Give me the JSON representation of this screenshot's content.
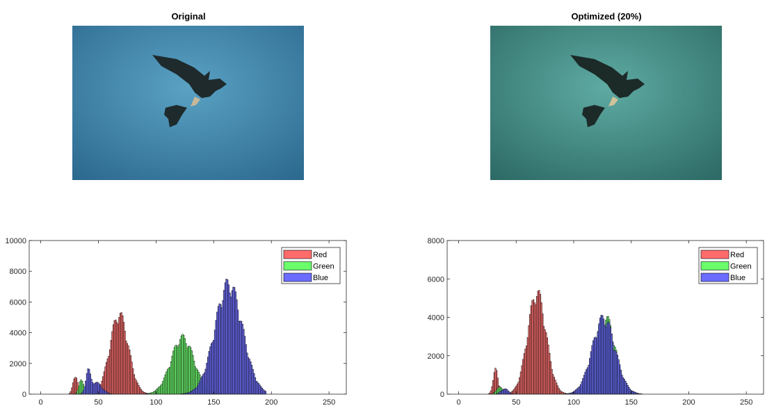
{
  "images": [
    {
      "title": "Original",
      "bg_light": "#5aa2c4",
      "bg_dark": "#2d6a8f"
    },
    {
      "title": "Optimized (20%)",
      "bg_light": "#5eaba3",
      "bg_dark": "#2e6b66"
    }
  ],
  "colors": {
    "red": "#ff6b6b",
    "green": "#6bff6b",
    "blue": "#6b6bff",
    "axis": "#262626"
  },
  "chart_data": [
    {
      "type": "bar",
      "title": "",
      "xlim": [
        -10,
        265
      ],
      "ylim": [
        0,
        10000
      ],
      "xticks": [
        0,
        50,
        100,
        150,
        200,
        250
      ],
      "yticks": [
        0,
        2000,
        4000,
        6000,
        8000,
        10000
      ],
      "legend": "top-right",
      "series": [
        {
          "name": "Red",
          "color": "#ff6b6b",
          "peaks": [
            {
              "center": 30,
              "width": 2,
              "height": 1300
            },
            {
              "center": 68,
              "width": 8,
              "height": 5500
            }
          ],
          "range": [
            20,
            95
          ]
        },
        {
          "name": "Green",
          "color": "#6bff6b",
          "peaks": [
            {
              "center": 35,
              "width": 2,
              "height": 900
            },
            {
              "center": 42,
              "width": 3,
              "height": 700
            },
            {
              "center": 123,
              "width": 10,
              "height": 3900
            }
          ],
          "range": [
            30,
            160
          ]
        },
        {
          "name": "Blue",
          "color": "#6b6bff",
          "peaks": [
            {
              "center": 41,
              "width": 2,
              "height": 1400
            },
            {
              "center": 48,
              "width": 5,
              "height": 800
            },
            {
              "center": 163,
              "width": 12,
              "height": 7600
            }
          ],
          "range": [
            30,
            195
          ]
        }
      ]
    },
    {
      "type": "bar",
      "title": "",
      "xlim": [
        -10,
        265
      ],
      "ylim": [
        0,
        8000
      ],
      "xticks": [
        0,
        50,
        100,
        150,
        200,
        250
      ],
      "yticks": [
        0,
        2000,
        4000,
        6000,
        8000
      ],
      "legend": "top-right",
      "series": [
        {
          "name": "Red",
          "color": "#ff6b6b",
          "peaks": [
            {
              "center": 32,
              "width": 2,
              "height": 1400
            },
            {
              "center": 68,
              "width": 8,
              "height": 5600
            }
          ],
          "range": [
            20,
            95
          ]
        },
        {
          "name": "Green",
          "color": "#6bff6b",
          "peaks": [
            {
              "center": 36,
              "width": 3,
              "height": 400
            },
            {
              "center": 127,
              "width": 9,
              "height": 4300
            }
          ],
          "range": [
            30,
            160
          ]
        },
        {
          "name": "Blue",
          "color": "#6b6bff",
          "peaks": [
            {
              "center": 40,
              "width": 3,
              "height": 300
            },
            {
              "center": 126,
              "width": 10,
              "height": 4200
            }
          ],
          "range": [
            30,
            160
          ]
        }
      ]
    }
  ]
}
